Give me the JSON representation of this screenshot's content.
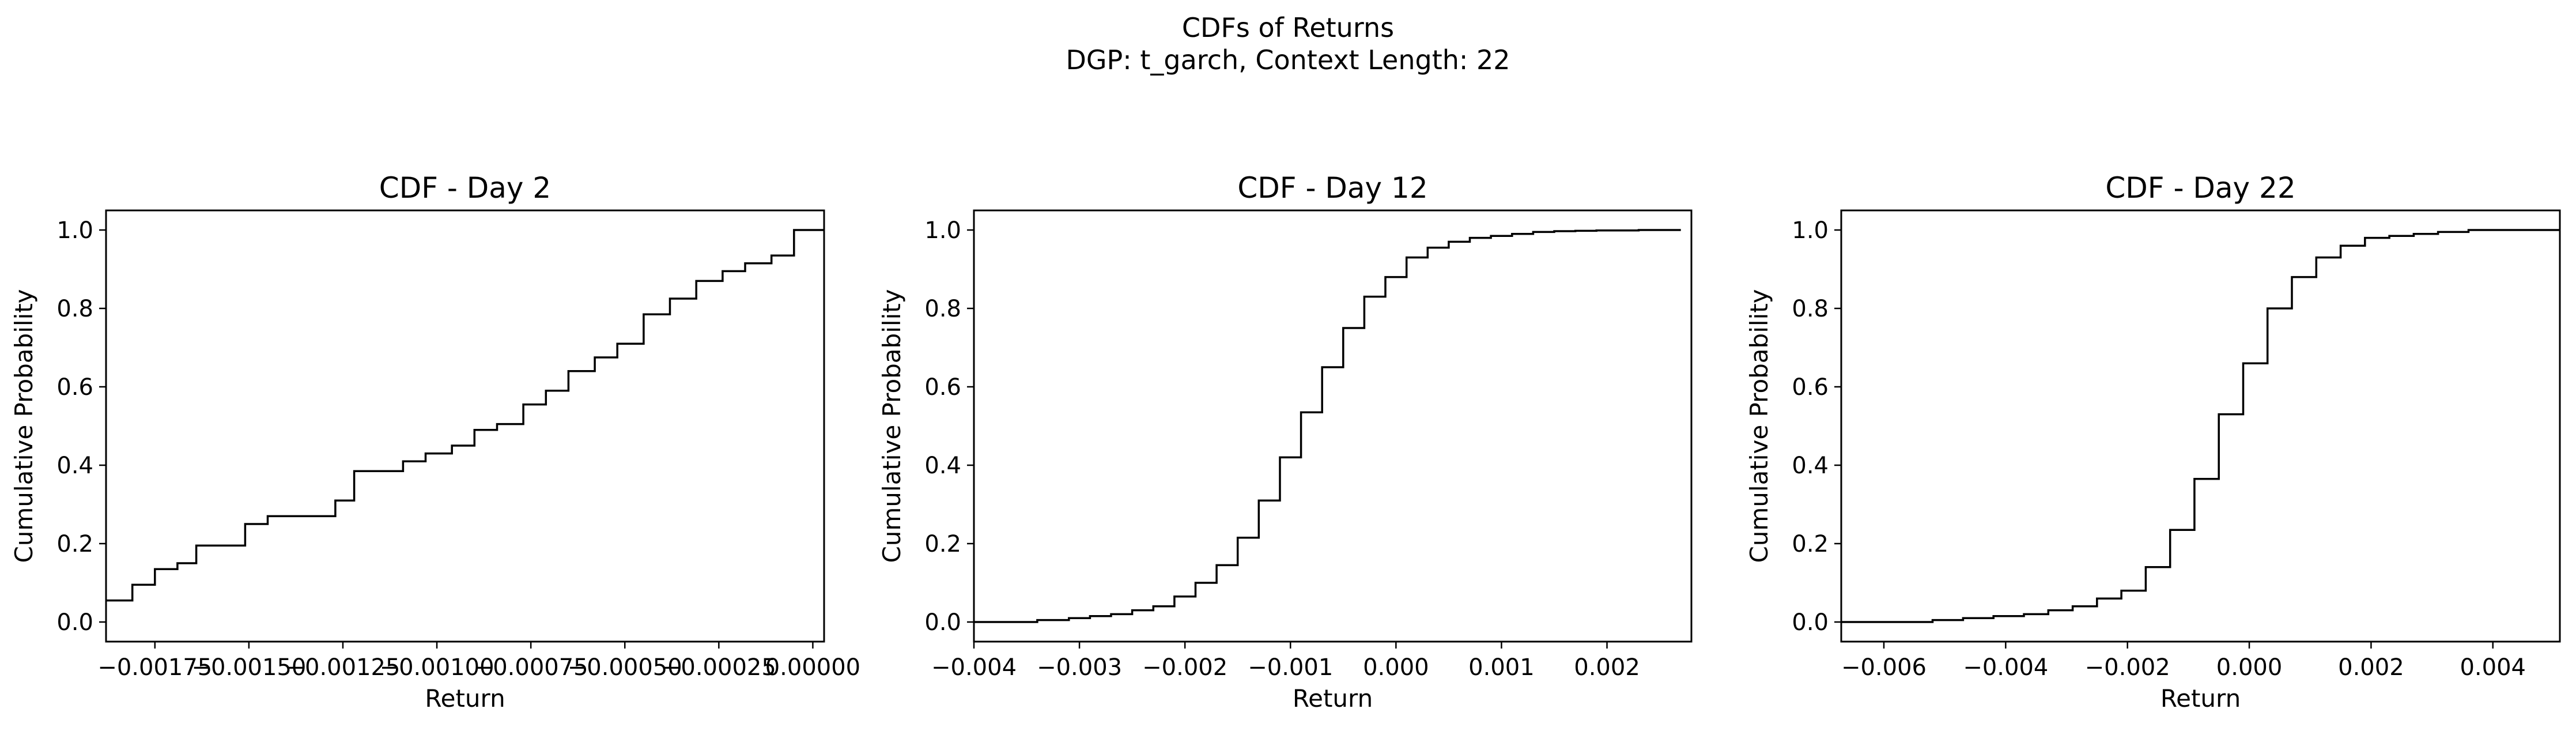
{
  "figure": {
    "title": "CDFs of Returns",
    "subtitle": "DGP: t_garch, Context Length: 22"
  },
  "chart_data": [
    {
      "type": "line",
      "step": "post",
      "title": "CDF - Day 2",
      "xlabel": "Return",
      "ylabel": "Cumulative Probability",
      "xlim": [
        -0.00188,
        3e-05
      ],
      "ylim": [
        -0.05,
        1.05
      ],
      "xticks": [
        -0.00175,
        -0.0015,
        -0.00125,
        -0.001,
        -0.00075,
        -0.0005,
        -0.00025,
        0.0
      ],
      "xtick_labels": [
        "−0.00175",
        "−0.00150",
        "−0.00125",
        "−0.00100",
        "−0.00075",
        "−0.00050",
        "−0.00025",
        "0.00000"
      ],
      "yticks": [
        0.0,
        0.2,
        0.4,
        0.6,
        0.8,
        1.0
      ],
      "ytick_labels": [
        "0.0",
        "0.2",
        "0.4",
        "0.6",
        "0.8",
        "1.0"
      ],
      "x": [
        -0.00188,
        -0.00181,
        -0.00175,
        -0.00169,
        -0.00164,
        -0.00151,
        -0.00145,
        -0.00127,
        -0.00122,
        -0.00109,
        -0.00103,
        -0.00096,
        -0.0009,
        -0.00084,
        -0.00077,
        -0.00071,
        -0.00065,
        -0.00058,
        -0.00052,
        -0.00045,
        -0.00038,
        -0.00031,
        -0.00024,
        -0.00018,
        -0.00011,
        -5e-05,
        3e-05
      ],
      "y": [
        0.055,
        0.095,
        0.135,
        0.15,
        0.195,
        0.25,
        0.27,
        0.31,
        0.385,
        0.41,
        0.43,
        0.45,
        0.49,
        0.505,
        0.555,
        0.59,
        0.64,
        0.675,
        0.71,
        0.785,
        0.825,
        0.87,
        0.895,
        0.915,
        0.935,
        1.0,
        1.0
      ]
    },
    {
      "type": "line",
      "step": "post",
      "title": "CDF - Day 12",
      "xlabel": "Return",
      "ylabel": "Cumulative Probability",
      "xlim": [
        -0.004,
        0.0028
      ],
      "ylim": [
        -0.05,
        1.05
      ],
      "xticks": [
        -0.004,
        -0.003,
        -0.002,
        -0.001,
        0.0,
        0.001,
        0.002
      ],
      "xtick_labels": [
        "−0.004",
        "−0.003",
        "−0.002",
        "−0.001",
        "0.000",
        "0.001",
        "0.002"
      ],
      "yticks": [
        0.0,
        0.2,
        0.4,
        0.6,
        0.8,
        1.0
      ],
      "ytick_labels": [
        "0.0",
        "0.2",
        "0.4",
        "0.6",
        "0.8",
        "1.0"
      ],
      "x": [
        -0.004,
        -0.0034,
        -0.0031,
        -0.0029,
        -0.0027,
        -0.0025,
        -0.0023,
        -0.0021,
        -0.0019,
        -0.0017,
        -0.0015,
        -0.0013,
        -0.0011,
        -0.0009,
        -0.0007,
        -0.0005,
        -0.0003,
        -0.0001,
        0.0001,
        0.0003,
        0.0005,
        0.0007,
        0.0009,
        0.0011,
        0.0013,
        0.0015,
        0.0017,
        0.0019,
        0.0023,
        0.0027
      ],
      "y": [
        0.0,
        0.005,
        0.01,
        0.015,
        0.02,
        0.03,
        0.04,
        0.065,
        0.1,
        0.145,
        0.215,
        0.31,
        0.42,
        0.535,
        0.65,
        0.75,
        0.83,
        0.88,
        0.93,
        0.955,
        0.97,
        0.98,
        0.985,
        0.99,
        0.995,
        0.997,
        0.998,
        0.999,
        1.0,
        1.0
      ]
    },
    {
      "type": "line",
      "step": "post",
      "title": "CDF - Day 22",
      "xlabel": "Return",
      "ylabel": "Cumulative Probability",
      "xlim": [
        -0.0067,
        0.0051
      ],
      "ylim": [
        -0.05,
        1.05
      ],
      "xticks": [
        -0.006,
        -0.004,
        -0.002,
        0.0,
        0.002,
        0.004
      ],
      "xtick_labels": [
        "−0.006",
        "−0.004",
        "−0.002",
        "0.000",
        "0.002",
        "0.004"
      ],
      "yticks": [
        0.0,
        0.2,
        0.4,
        0.6,
        0.8,
        1.0
      ],
      "ytick_labels": [
        "0.0",
        "0.2",
        "0.4",
        "0.6",
        "0.8",
        "1.0"
      ],
      "x": [
        -0.0067,
        -0.0052,
        -0.0047,
        -0.0042,
        -0.0037,
        -0.0033,
        -0.0029,
        -0.0025,
        -0.0021,
        -0.0017,
        -0.0013,
        -0.0009,
        -0.0005,
        -0.0001,
        0.0003,
        0.0007,
        0.0011,
        0.0015,
        0.0019,
        0.0023,
        0.0027,
        0.0031,
        0.0036,
        0.0051
      ],
      "y": [
        0.0,
        0.005,
        0.01,
        0.015,
        0.02,
        0.03,
        0.04,
        0.06,
        0.08,
        0.14,
        0.235,
        0.365,
        0.53,
        0.66,
        0.8,
        0.88,
        0.93,
        0.96,
        0.98,
        0.985,
        0.99,
        0.995,
        1.0,
        1.0
      ]
    }
  ]
}
